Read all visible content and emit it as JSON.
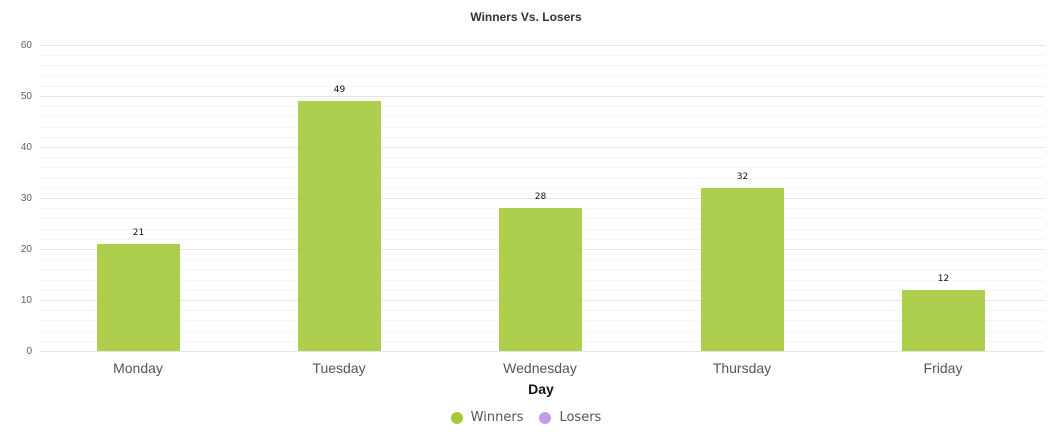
{
  "chart_data": {
    "type": "bar",
    "title": "Winners Vs. Losers",
    "xlabel": "Day",
    "ylabel": "",
    "categories": [
      "Monday",
      "Tuesday",
      "Wednesday",
      "Thursday",
      "Friday"
    ],
    "series": [
      {
        "name": "Winners",
        "values": [
          21,
          49,
          28,
          32,
          12
        ],
        "color": "#a5c93b"
      },
      {
        "name": "Losers",
        "values": [],
        "color": "#c39be6"
      }
    ],
    "ylim": [
      0,
      60
    ],
    "yticks": [
      0,
      10,
      20,
      30,
      40,
      50,
      60
    ],
    "grid": true,
    "legend_position": "bottom",
    "data_labels": true
  },
  "title": "Winners Vs. Losers",
  "xaxis": {
    "label": "Day",
    "ticks": [
      "Monday",
      "Tuesday",
      "Wednesday",
      "Thursday",
      "Friday"
    ]
  },
  "yaxis": {
    "ticks": [
      "60",
      "50",
      "40",
      "30",
      "20",
      "10",
      "0"
    ]
  },
  "bars": [
    {
      "label": "21",
      "value": 21
    },
    {
      "label": "49",
      "value": 49
    },
    {
      "label": "28",
      "value": 28
    },
    {
      "label": "32",
      "value": 32
    },
    {
      "label": "12",
      "value": 12
    }
  ],
  "legend": {
    "items": [
      {
        "label": "Winners",
        "color": "#a5c93b"
      },
      {
        "label": "Losers",
        "color": "#c39be6"
      }
    ]
  }
}
